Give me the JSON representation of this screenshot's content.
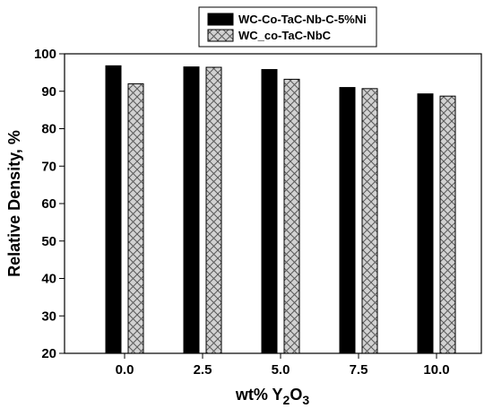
{
  "chart_data": {
    "type": "bar",
    "categories": [
      "0.0",
      "2.5",
      "5.0",
      "7.5",
      "10.0"
    ],
    "series": [
      {
        "name": "WC-Co-TaC-Nb-C-5%Ni",
        "values": [
          96.8,
          96.5,
          95.8,
          91.0,
          89.3
        ],
        "color": "#000000",
        "pattern": "solid"
      },
      {
        "name": "WC_co-TaC-NbC",
        "values": [
          92.0,
          96.4,
          93.2,
          90.7,
          88.7
        ],
        "color": "#c8c8c8",
        "pattern": "crosshatch"
      }
    ],
    "xlabel_main": "wt% Y",
    "xlabel_sub1": "2",
    "xlabel_mid": "O",
    "xlabel_sub2": "3",
    "ylabel": "Relative Density, %",
    "ylim": [
      20,
      100
    ],
    "yticks": [
      "20",
      "30",
      "40",
      "50",
      "60",
      "70",
      "80",
      "90",
      "100"
    ],
    "legend_position": "top-right",
    "grid": false
  }
}
